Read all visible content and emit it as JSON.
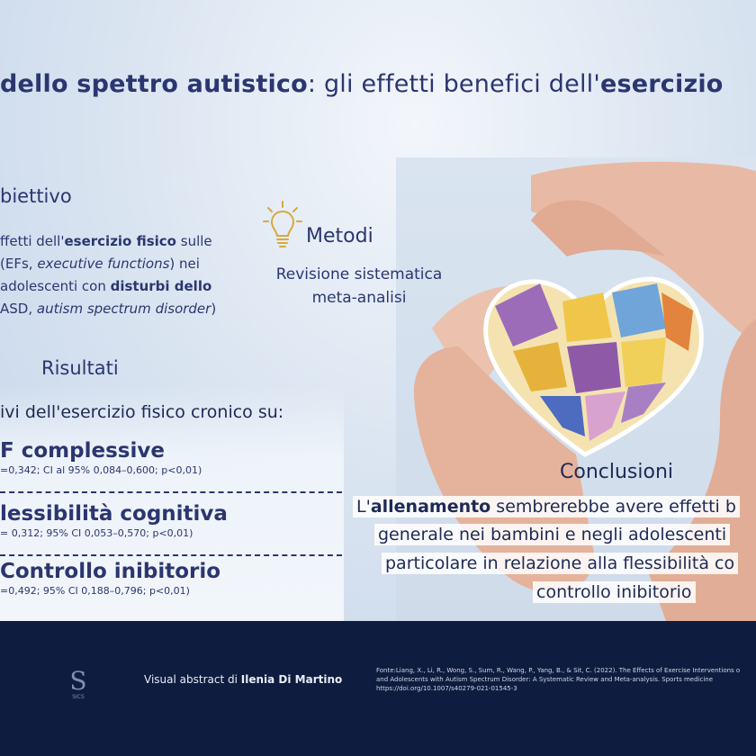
{
  "title": {
    "part1_bold": "dello spettro autistico",
    "part2": ": gli effetti benefici dell'",
    "part3_bold": "esercizio"
  },
  "objective": {
    "heading": "biettivo",
    "line1_a": "ffetti dell'",
    "line1_b": "esercizio fisico",
    "line1_c": " sulle",
    "line2_a": " (EFs, ",
    "line2_b": "executive functions",
    "line2_c": ")  nei",
    "line3_a": "adolescenti con ",
    "line3_b": "disturbi dello",
    "line4_a": "ASD, ",
    "line4_b": "autism spectrum disorder",
    "line4_c": ")"
  },
  "methods": {
    "heading": "Metodi",
    "line1": "Revisione sistematica",
    "line2": "meta-analisi",
    "icon": "lightbulb-icon"
  },
  "results": {
    "heading": "Risultati",
    "intro": "ivi dell'esercizio fisico cronico su:",
    "items": [
      {
        "title": "F complessive",
        "stats": "=0,342; CI al 95% 0,084–0,600; p<0,01)"
      },
      {
        "title": "lessibilità cognitiva",
        "stats": "= 0,312; 95% CI 0,053–0,570; p<0,01)"
      },
      {
        "title": "Controllo inibitorio",
        "stats": "=0,492; 95% CI 0,188–0,796; p<0,01)"
      }
    ]
  },
  "conclusions": {
    "heading": "Conclusioni",
    "line1_a": "L'",
    "line1_b": "allenamento",
    "line1_c": " sembrerebbe avere effetti b",
    "line2": "generale nei bambini e negli adolescenti",
    "line3": "particolare in relazione alla flessibilità co",
    "line4": "controllo inibitorio"
  },
  "footer": {
    "logo_text": "SICS",
    "visual_prefix": "Visual abstract di ",
    "visual_author": "Ilenia Di Martino",
    "source_lines": [
      "Fonte:Liang, X., Li, R., Wong, S., Sum, R., Wang, P., Yang, B., & Sit, C. (2022). The Effects of Exercise Interventions o",
      "and Adolescents with Autism Spectrum Disorder: A Systematic Review and Meta-analysis. Sports medicine",
      "https://doi.org/10.1007/s40279-021-01545-3"
    ]
  },
  "colors": {
    "navy": "#2b3670",
    "footer_bg": "#0e1c3f",
    "background": "#dce6f2"
  }
}
